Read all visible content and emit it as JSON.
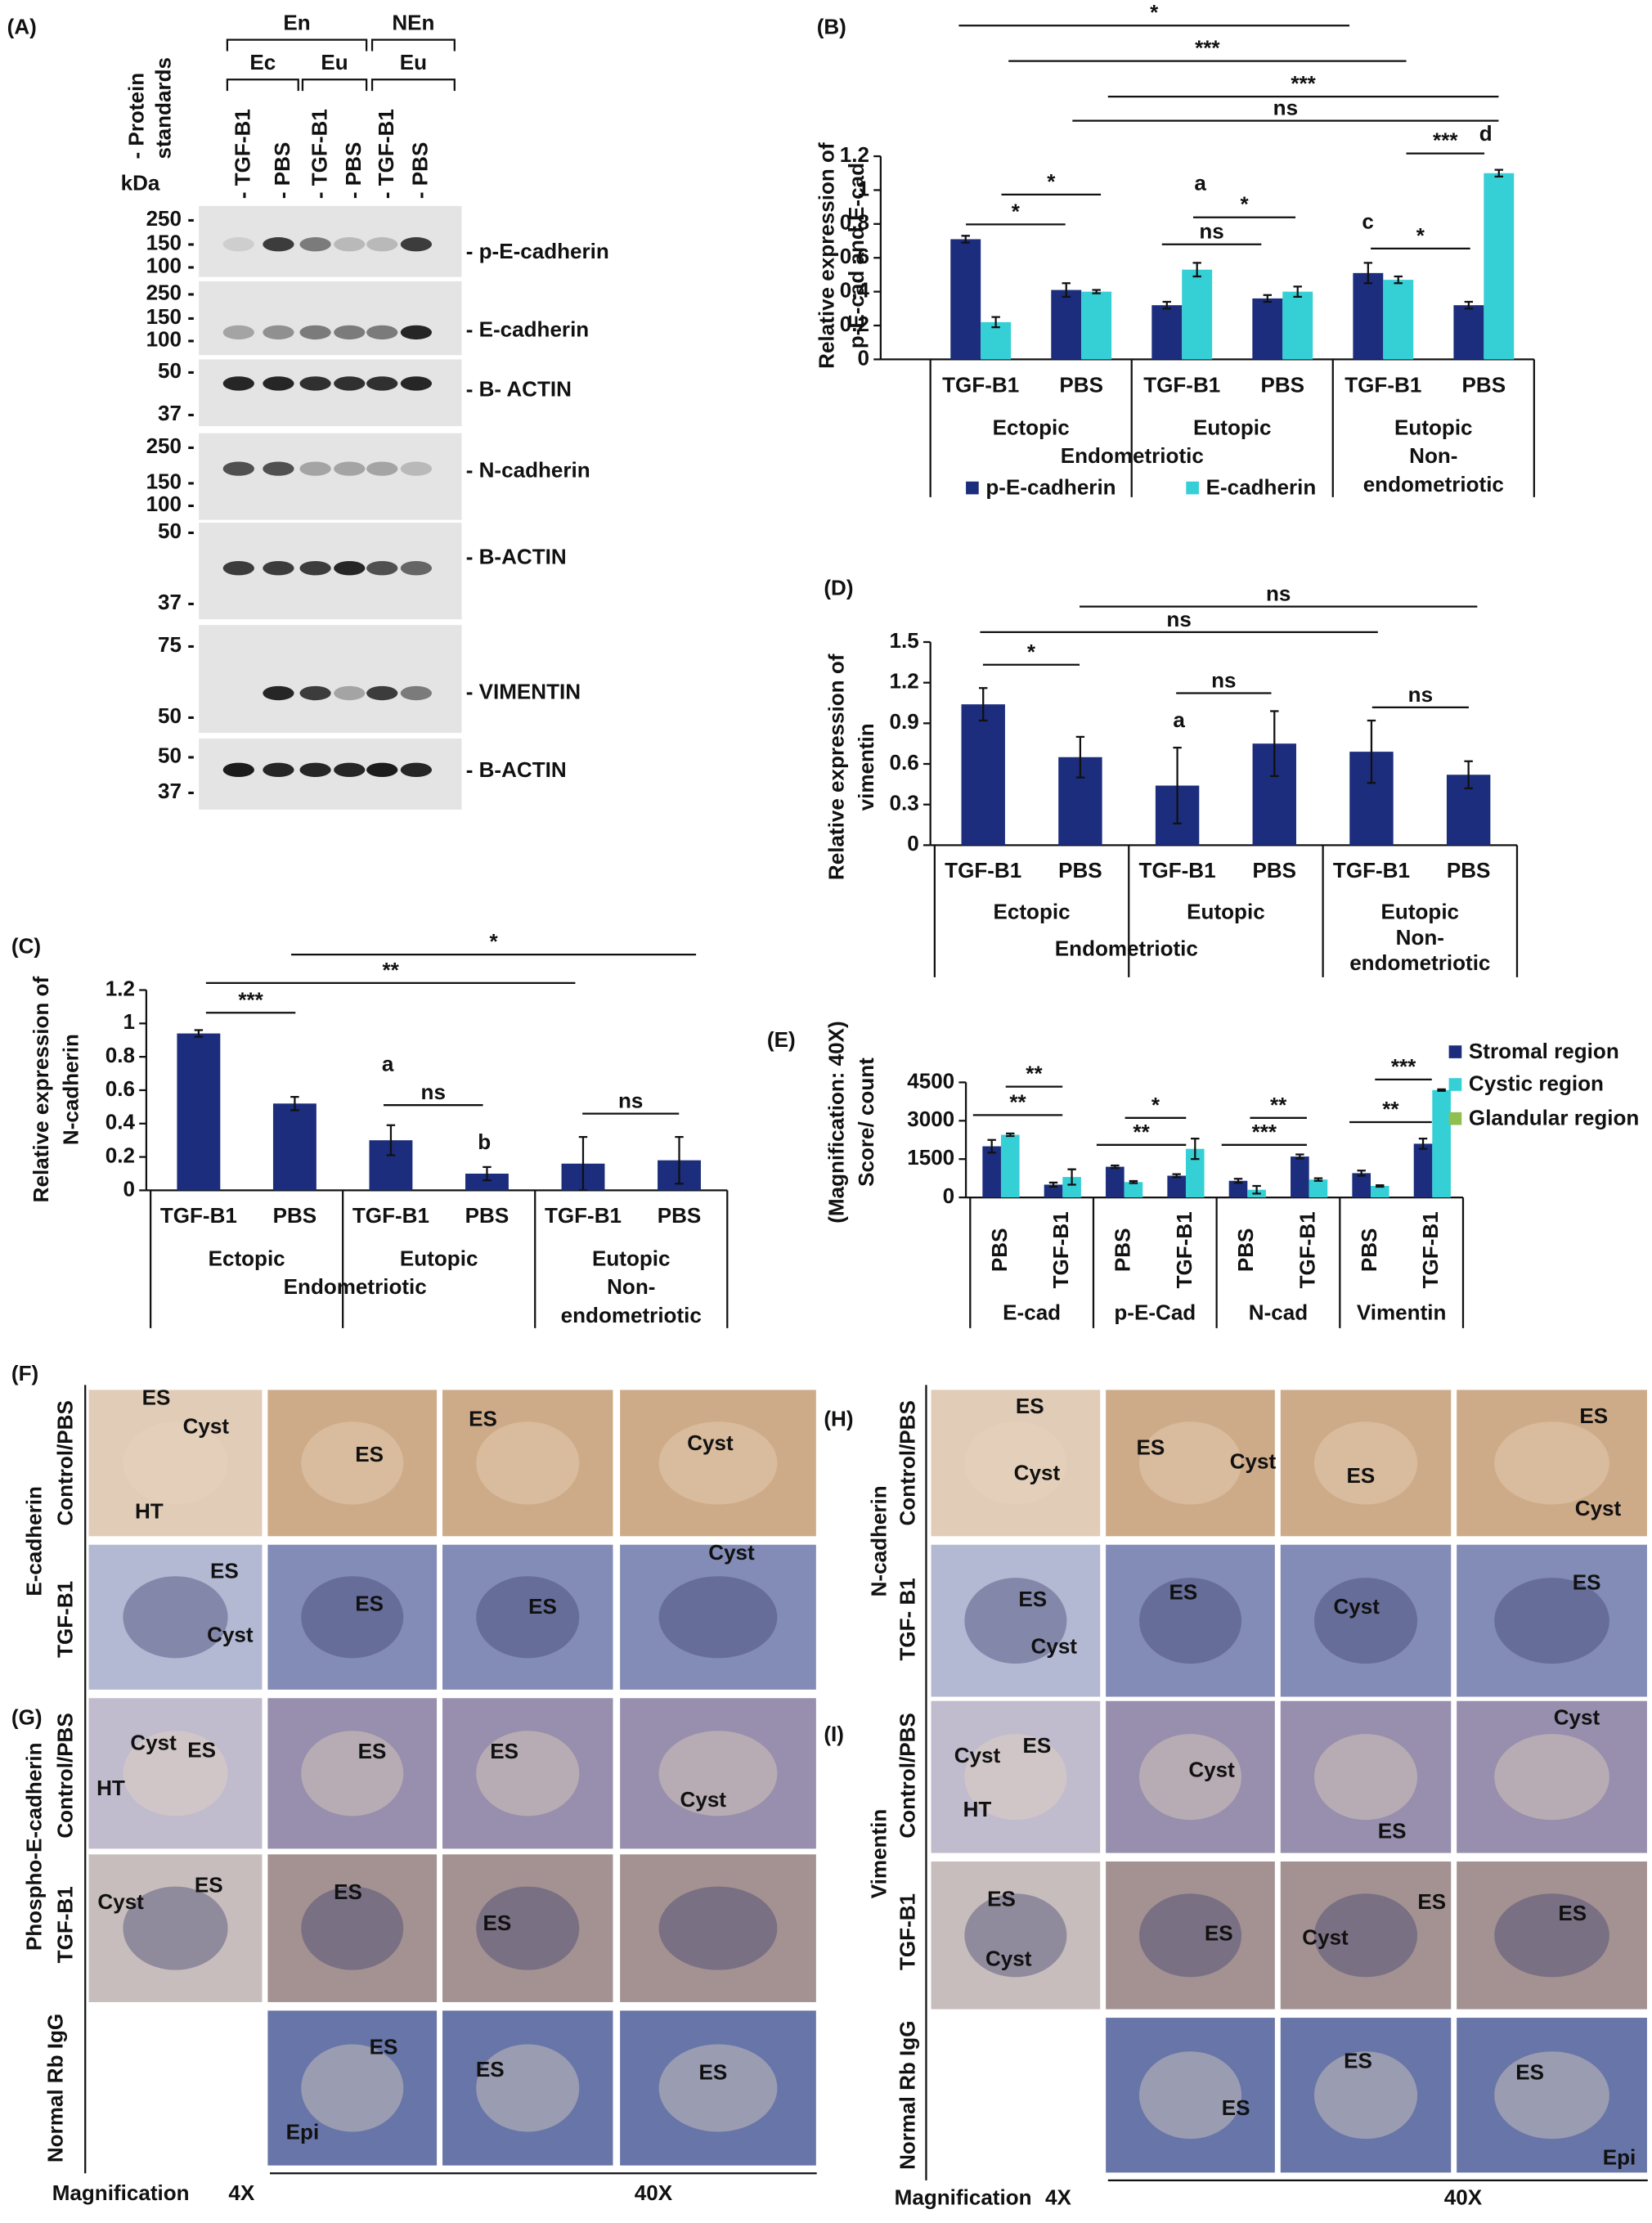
{
  "blot": {
    "panel": "(A)",
    "header": [
      "En",
      "NEn"
    ],
    "subheader": [
      "Ec",
      "Eu",
      "Eu"
    ],
    "lanes": [
      "- TGF-B1",
      "- PBS",
      "- TGF-B1",
      "- PBS",
      "- TGF-B1",
      "- PBS"
    ],
    "standards": [
      "- Protein",
      "standards"
    ],
    "unit": "kDa",
    "blots": [
      {
        "markers": [
          "250 -",
          "150 -",
          "100 -"
        ],
        "protein": "- p-E-cadherin"
      },
      {
        "markers": [
          "250 -",
          "150 -",
          "100 -"
        ],
        "protein": "- E-cadherin"
      },
      {
        "markers": [
          "50 -",
          "37 -"
        ],
        "protein": "- B- ACTIN"
      },
      {
        "markers": [
          "250 -",
          "150 -",
          "100 -"
        ],
        "protein": "- N-cadherin"
      },
      {
        "markers": [
          "50 -",
          "37 -"
        ],
        "protein": "- B-ACTIN"
      },
      {
        "markers": [
          "75 -",
          "50 -"
        ],
        "protein": "- VIMENTIN"
      },
      {
        "markers": [
          "50 -",
          "37 -"
        ],
        "protein": "- B-ACTIN"
      }
    ]
  },
  "chart_data": [
    {
      "type": "bar",
      "panel": "(B)",
      "y_label": [
        "Relative expression of",
        "p-E-cad and E-cad"
      ],
      "categories": [
        "TGF-B1",
        "PBS",
        "TGF-B1",
        "PBS",
        "TGF-B1",
        "PBS"
      ],
      "groups": [
        [
          "Ectopic"
        ],
        [
          "Eutopic"
        ],
        [
          "Eutopic",
          "Non-",
          "endometriotic"
        ]
      ],
      "super_group": "Endometriotic",
      "series": [
        {
          "name": "p-E-cadherin",
          "color": "#1b2d7c",
          "values": [
            0.71,
            0.41,
            0.32,
            0.36,
            0.51,
            0.32
          ],
          "errors": [
            0.02,
            0.04,
            0.02,
            0.02,
            0.06,
            0.02
          ]
        },
        {
          "name": "E-cadherin",
          "color": "#35cfd6",
          "values": [
            0.22,
            0.4,
            0.53,
            0.4,
            0.47,
            1.1
          ],
          "errors": [
            0.03,
            0.01,
            0.04,
            0.03,
            0.02,
            0.02
          ]
        }
      ],
      "ylim": [
        0,
        1.2
      ],
      "yticks": [
        0,
        0.2,
        0.4,
        0.6,
        0.8,
        1,
        1.2
      ],
      "annotations": [
        "*",
        "***",
        "***",
        "ns",
        "***",
        "d",
        "*",
        "*",
        "a",
        "ns",
        "*",
        "c",
        "*"
      ]
    },
    {
      "type": "bar",
      "panel": "(C)",
      "y_label": [
        "Relative expression of",
        "N-cadherin"
      ],
      "categories": [
        "TGF-B1",
        "PBS",
        "TGF-B1",
        "PBS",
        "TGF-B1",
        "PBS"
      ],
      "groups": [
        [
          "Ectopic"
        ],
        [
          "Eutopic"
        ],
        [
          "Eutopic",
          "Non-",
          "endometriotic"
        ]
      ],
      "super_group": "Endometriotic",
      "color": "#1b2d7c",
      "values": [
        0.94,
        0.52,
        0.3,
        0.1,
        0.16,
        0.18
      ],
      "errors": [
        0.02,
        0.04,
        0.09,
        0.04,
        0.16,
        0.14
      ],
      "ylim": [
        0,
        1.2
      ],
      "yticks": [
        0,
        0.2,
        0.4,
        0.6,
        0.8,
        1,
        1.2
      ],
      "annotations": [
        "*",
        "**",
        "***",
        "a",
        "ns",
        "b",
        "ns"
      ]
    },
    {
      "type": "bar",
      "panel": "(D)",
      "y_label": [
        "Relative expression of",
        "vimentin"
      ],
      "categories": [
        "TGF-B1",
        "PBS",
        "TGF-B1",
        "PBS",
        "TGF-B1",
        "PBS"
      ],
      "groups": [
        [
          "Ectopic"
        ],
        [
          "Eutopic"
        ],
        [
          "Eutopic",
          "Non-",
          "endometriotic"
        ]
      ],
      "super_group": "Endometriotic",
      "color": "#1b2d7c",
      "values": [
        1.04,
        0.65,
        0.44,
        0.75,
        0.69,
        0.52
      ],
      "errors": [
        0.12,
        0.15,
        0.28,
        0.24,
        0.23,
        0.1
      ],
      "ylim": [
        0,
        1.5
      ],
      "yticks": [
        0,
        0.3,
        0.6,
        0.9,
        1.2,
        1.5
      ],
      "annotations": [
        "ns",
        "ns",
        "*",
        "a",
        "ns",
        "ns"
      ]
    },
    {
      "type": "bar",
      "panel": "(E)",
      "y_label": [
        "(Magnification: 40X)",
        "Score/ count"
      ],
      "categories": [
        "PBS",
        "TGF-B1",
        "PBS",
        "TGF-B1",
        "PBS",
        "TGF-B1",
        "PBS",
        "TGF-B1"
      ],
      "groups": [
        [
          "E-cad"
        ],
        [
          "p-E-Cad"
        ],
        [
          "N-cad"
        ],
        [
          "Vimentin"
        ]
      ],
      "series": [
        {
          "name": "Stromal region",
          "color": "#1b2d7c",
          "values": [
            2000,
            500,
            1200,
            850,
            650,
            1600,
            950,
            2100
          ],
          "errors": [
            250,
            80,
            50,
            60,
            80,
            80,
            100,
            200
          ]
        },
        {
          "name": "Cystic region",
          "color": "#35cfd6",
          "values": [
            2450,
            800,
            600,
            1900,
            300,
            700,
            450,
            4200
          ],
          "errors": [
            50,
            300,
            40,
            400,
            150,
            50,
            30,
            30
          ]
        },
        {
          "name": "Glandular region",
          "color": "#8fc04f",
          "values": [
            null,
            null,
            null,
            null,
            null,
            null,
            null,
            null
          ]
        }
      ],
      "ylim": [
        0,
        4500
      ],
      "yticks": [
        0,
        1500,
        3000,
        4500
      ],
      "annotations": [
        "**",
        "**",
        "*",
        "**",
        "**",
        "***",
        "***",
        "**"
      ]
    }
  ],
  "histology": {
    "panels": [
      "(F)",
      "(G)",
      "(H)",
      "(I)"
    ],
    "rows": [
      "Control/PBS",
      "TGF-B1",
      "Control/PBS",
      "TGF-B1",
      "Normal Rb IgG",
      "Control/PBS",
      "TGF- B1",
      "Control/PBS",
      "TGF-B1",
      "Normal Rb IgG"
    ],
    "stains": [
      "E-cadherin",
      "Phospho-E-cadherin",
      "N-cadherin",
      "Vimentin"
    ],
    "magnification": [
      "Magnification",
      "4X",
      "40X",
      "Magnification",
      "4X",
      "40X"
    ],
    "tile_labels": [
      "ES",
      "Cyst",
      "HT",
      "ES",
      "ES",
      "Cyst",
      "ES",
      "Cyst",
      "ES",
      "ES",
      "Cyst",
      "Cyst",
      "ES",
      "HT",
      "ES",
      "ES",
      "Cyst",
      "Cyst",
      "ES",
      "ES",
      "ES",
      "ES",
      "Epi",
      "ES",
      "ES",
      "ES",
      "Cyst",
      "ES",
      "Cyst",
      "ES",
      "ES",
      "Cyst",
      "ES",
      "Cyst",
      "ES",
      "Cyst",
      "ES",
      "Cyst",
      "ES",
      "HT",
      "Cyst",
      "ES",
      "Cyst",
      "ES",
      "Cyst",
      "ES",
      "Cyst",
      "ES",
      "ES",
      "ES",
      "ES",
      "ES",
      "Epi"
    ]
  }
}
